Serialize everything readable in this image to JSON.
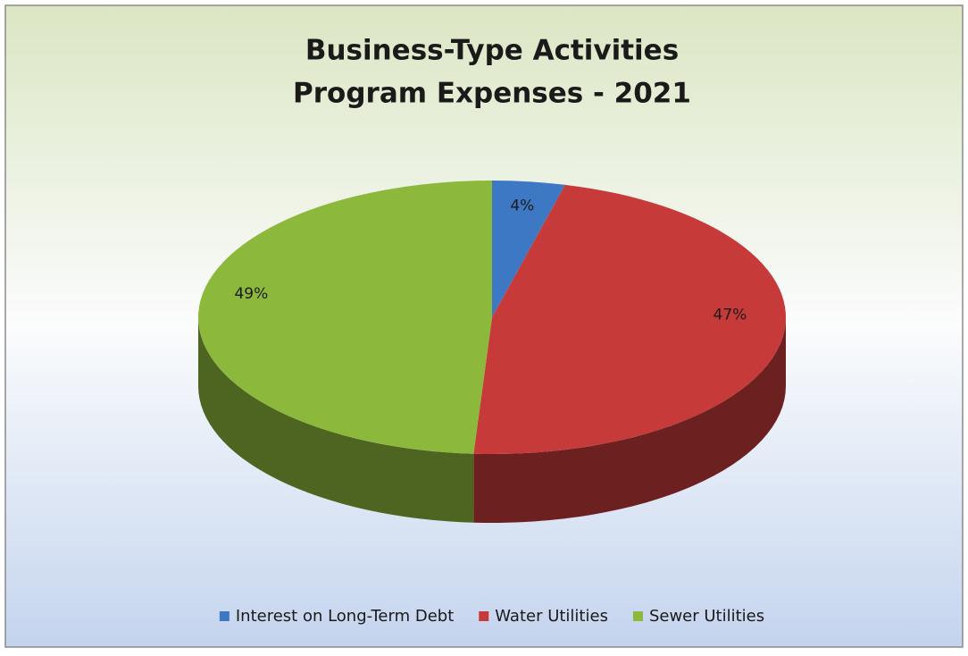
{
  "chart_data": {
    "type": "pie",
    "title": [
      "Business-Type Activities",
      "Program Expenses - 2021"
    ],
    "categories": [
      "Interest on Long-Term Debt",
      "Water Utilities",
      "Sewer Utilities"
    ],
    "values": [
      4,
      47,
      49
    ],
    "value_labels": [
      "4%",
      "47%",
      "49%"
    ],
    "colors": [
      "#3d78c4",
      "#c73a3a",
      "#8cb83c"
    ],
    "legend": "bottom"
  }
}
